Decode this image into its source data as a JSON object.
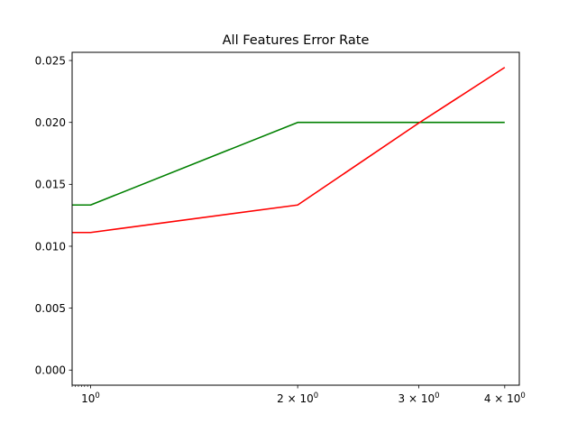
{
  "chart_data": {
    "type": "line",
    "title": "All Features Error Rate",
    "xlabel": "",
    "ylabel": "",
    "x_scale": "log",
    "xlim": [
      0.94,
      4.2
    ],
    "ylim": [
      -0.00122,
      0.02566
    ],
    "x_ticks": [
      {
        "value": 1,
        "base": "10",
        "exp": "0"
      },
      {
        "value": 2,
        "base": "2 × 10",
        "exp": "0"
      },
      {
        "value": 3,
        "base": "3 × 10",
        "exp": "0"
      },
      {
        "value": 4,
        "base": "4 × 10",
        "exp": "0"
      }
    ],
    "y_ticks": [
      {
        "value": 0.0,
        "label": "0.000"
      },
      {
        "value": 0.005,
        "label": "0.005"
      },
      {
        "value": 0.01,
        "label": "0.010"
      },
      {
        "value": 0.015,
        "label": "0.015"
      },
      {
        "value": 0.02,
        "label": "0.020"
      },
      {
        "value": 0.025,
        "label": "0.025"
      }
    ],
    "grid": false,
    "legend": "none",
    "series": [
      {
        "color": "#008000",
        "x": [
          0.9,
          1,
          2,
          3,
          4
        ],
        "y": [
          0.01333,
          0.01333,
          0.02,
          0.02,
          0.02
        ]
      },
      {
        "color": "#ff0000",
        "x": [
          0.9,
          1,
          2,
          3,
          4
        ],
        "y": [
          0.01111,
          0.01111,
          0.01333,
          0.01995,
          0.02444
        ]
      }
    ]
  }
}
